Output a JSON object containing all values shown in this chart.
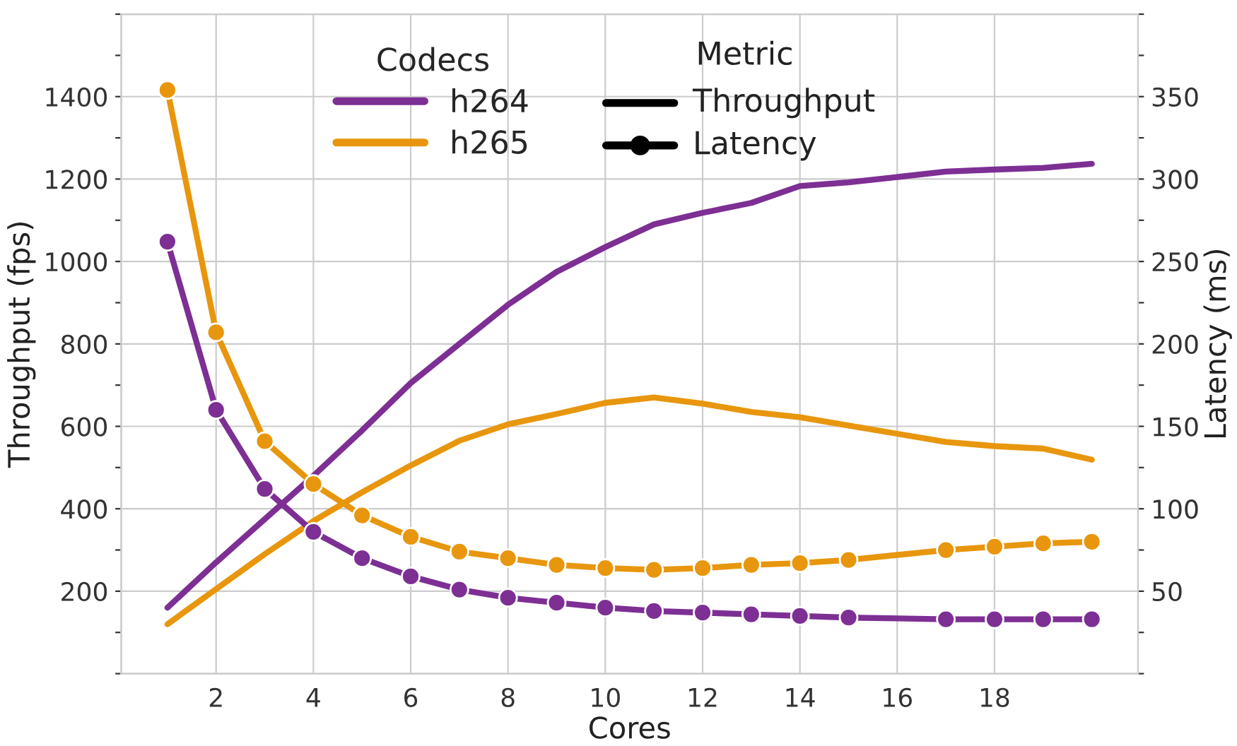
{
  "chart_data": {
    "type": "line",
    "xlabel": "Cores",
    "ylabel": "Throughput (fps)",
    "y2label": "Latency (ms)",
    "xlim": [
      0.05,
      20.95
    ],
    "xticks": [
      2,
      4,
      6,
      8,
      10,
      12,
      14,
      16,
      18
    ],
    "ylim": [
      0,
      1600
    ],
    "yticks": [
      200,
      400,
      600,
      800,
      1000,
      1200,
      1400
    ],
    "y2lim": [
      0,
      400
    ],
    "y2ticks": [
      50,
      100,
      150,
      200,
      250,
      300,
      350
    ],
    "grid": true,
    "legend": "top",
    "legend_title": "Codecs",
    "line_style": "solid",
    "annotations": [
      "Metric",
      "Throughput",
      "Latency"
    ],
    "series": [
      {
        "name": "h264",
        "color": "#7d2f94",
        "marker": "none",
        "x": [
          1,
          2,
          3,
          4,
          5,
          6,
          7,
          8,
          9,
          10,
          11,
          12,
          13,
          14,
          15,
          16,
          17,
          18,
          19,
          20
        ],
        "values": [
          160,
          270,
          375,
          480,
          590,
          705,
          800,
          895,
          975,
          1035,
          1090,
          1118,
          1142,
          1183,
          1192,
          1205,
          1218,
          1223,
          1227,
          1237
        ]
      },
      {
        "name": "h265",
        "color": "#e8960d",
        "marker": "none",
        "x": [
          1,
          2,
          3,
          4,
          5,
          6,
          7,
          8,
          9,
          10,
          11,
          12,
          13,
          14,
          15,
          16,
          17,
          18,
          19,
          20
        ],
        "values": [
          120,
          205,
          290,
          370,
          440,
          505,
          565,
          605,
          630,
          657,
          670,
          655,
          635,
          622,
          602,
          582,
          562,
          552,
          546,
          519
        ]
      },
      {
        "color": "#7d2f94",
        "marker": "circle",
        "axis": "y2",
        "x": [
          1,
          2,
          3,
          4,
          5,
          6,
          7,
          8,
          9,
          10,
          11,
          12,
          13,
          14,
          15,
          17,
          18,
          19,
          20
        ],
        "values": [
          262,
          160,
          112,
          86,
          70,
          59,
          51,
          46,
          43,
          40,
          38,
          37,
          36,
          35,
          34,
          33,
          33,
          33,
          33
        ]
      },
      {
        "color": "#e8960d",
        "marker": "circle",
        "axis": "y2",
        "x": [
          1,
          2,
          3,
          4,
          5,
          6,
          7,
          8,
          9,
          10,
          11,
          12,
          13,
          14,
          15,
          17,
          18,
          19,
          20
        ],
        "values": [
          354,
          207,
          141,
          115,
          96,
          83,
          74,
          70,
          66,
          64,
          63,
          64,
          66,
          67,
          69,
          75,
          77,
          79,
          80
        ]
      }
    ]
  }
}
